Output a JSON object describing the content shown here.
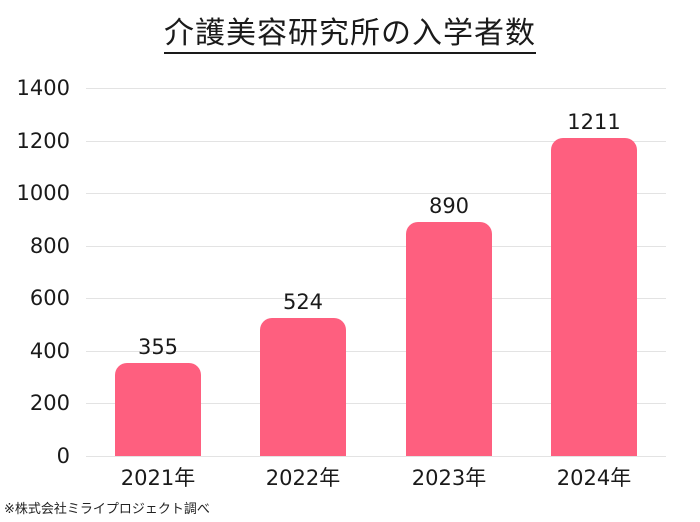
{
  "chart_data": {
    "type": "bar",
    "title": "介護美容研究所の入学者数",
    "categories": [
      "2021年",
      "2022年",
      "2023年",
      "2024年"
    ],
    "values": [
      355,
      524,
      890,
      1211
    ],
    "xlabel": "",
    "ylabel": "",
    "ylim": [
      0,
      1400
    ],
    "yticks": [
      0,
      200,
      400,
      600,
      800,
      1000,
      1200,
      1400
    ],
    "grid": true,
    "legend": null,
    "bar_color": "#fe5f7f",
    "data_labels": true,
    "source_note": "※株式会社ミライプロジェクト調べ"
  }
}
